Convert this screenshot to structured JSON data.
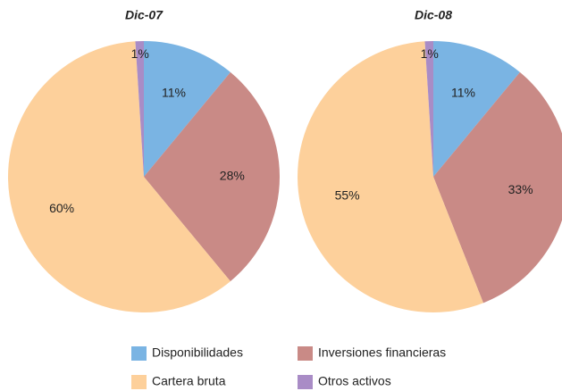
{
  "chart_data": [
    {
      "type": "pie",
      "title": "Dic-07",
      "categories": [
        "Disponibilidades",
        "Inversiones financieras",
        "Cartera bruta",
        "Otros activos"
      ],
      "values": [
        11,
        28,
        60,
        1
      ],
      "value_labels": [
        "11%",
        "28%",
        "60%",
        "1%"
      ],
      "colors": [
        "#7ab4e3",
        "#c98a86",
        "#fdd09b",
        "#a98cc6"
      ]
    },
    {
      "type": "pie",
      "title": "Dic-08",
      "categories": [
        "Disponibilidades",
        "Inversiones financieras",
        "Cartera bruta",
        "Otros activos"
      ],
      "values": [
        11,
        33,
        55,
        1
      ],
      "value_labels": [
        "11%",
        "33%",
        "55%",
        "1%"
      ],
      "colors": [
        "#7ab4e3",
        "#c98a86",
        "#fdd09b",
        "#a98cc6"
      ]
    }
  ]
}
